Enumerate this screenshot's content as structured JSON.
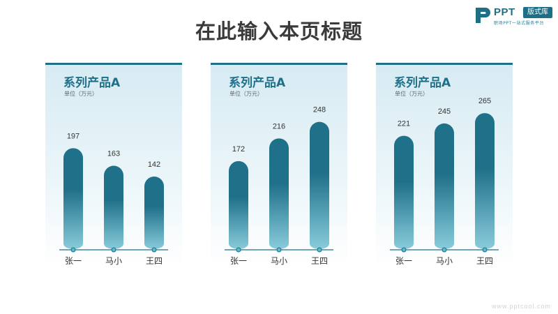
{
  "header": {
    "title": "在此输入本页标题",
    "logo": {
      "brand": "PPT",
      "tag": "版式库",
      "sub": "职场PPT一站式服务平台"
    },
    "watermark": "www.pptcool.com"
  },
  "colors": {
    "accent": "#1e7085",
    "bar_top": "#1f7089",
    "bar_bottom": "#8ccfde",
    "baseline": "#1e6f84"
  },
  "chart_data": [
    {
      "type": "bar",
      "title": "系列产品A",
      "subtitle": "单位（万元）",
      "categories": [
        "张一",
        "马小",
        "王四"
      ],
      "values": [
        197,
        163,
        142
      ],
      "ylim": [
        0,
        280
      ]
    },
    {
      "type": "bar",
      "title": "系列产品A",
      "subtitle": "单位（万元）",
      "categories": [
        "张一",
        "马小",
        "王四"
      ],
      "values": [
        172,
        216,
        248
      ],
      "ylim": [
        0,
        280
      ]
    },
    {
      "type": "bar",
      "title": "系列产品A",
      "subtitle": "单位（万元）",
      "categories": [
        "张一",
        "马小",
        "王四"
      ],
      "values": [
        221,
        245,
        265
      ],
      "ylim": [
        0,
        280
      ]
    }
  ]
}
